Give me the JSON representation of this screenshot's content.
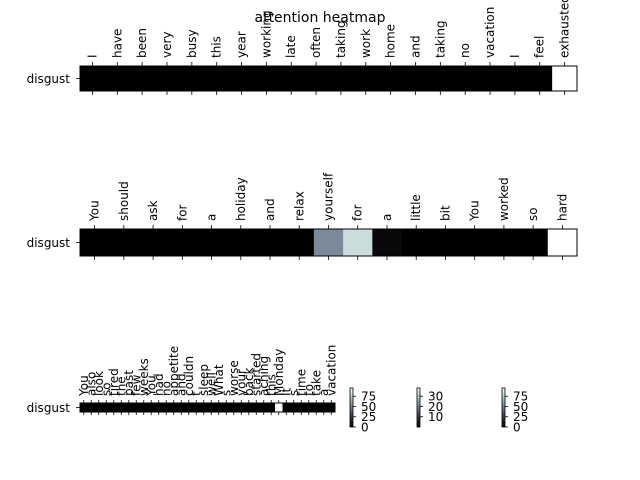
{
  "chart_data": {
    "type": "heatmap",
    "title": "attention heatmap",
    "colormap": "bone",
    "panels": [
      {
        "row_label": "disgust",
        "tokens": [
          "I",
          "have",
          "been",
          "very",
          "busy",
          "this",
          "year",
          "working",
          "late",
          "often",
          "taking",
          "work",
          "home",
          "and",
          "taking",
          "no",
          "vacation",
          "I",
          "feel",
          "exhausted"
        ],
        "values": [
          0,
          0,
          0,
          0,
          0,
          0,
          0,
          0,
          0,
          0,
          0,
          0,
          0,
          0,
          0,
          0,
          0,
          0,
          0,
          100
        ]
      },
      {
        "row_label": "disgust",
        "tokens": [
          "You",
          "should",
          "ask",
          "for",
          "a",
          "holiday",
          "and",
          "relax",
          "yourself",
          "for",
          "a",
          "little",
          "bit",
          "You",
          "worked",
          "so",
          "hard"
        ],
        "values": [
          0,
          0,
          0,
          0,
          0,
          0,
          0,
          0,
          55,
          85,
          4,
          0,
          0,
          0,
          0,
          0,
          100
        ]
      },
      {
        "row_label": "disgust",
        "tokens": [
          "You",
          "also",
          "look",
          "so",
          "tired",
          "the",
          "past",
          "few",
          "weeks",
          "You",
          "had",
          "no",
          "appetite",
          "and",
          "couldn",
          "t",
          "sleep",
          "well",
          "What",
          "s",
          "worse",
          "your",
          "back",
          "started",
          "aching",
          "this",
          "Monday",
          "It",
          "s",
          "time",
          "to",
          "take",
          "a",
          "vacation"
        ],
        "values": [
          0,
          0,
          0,
          0,
          0,
          0,
          0,
          0,
          0,
          0,
          0,
          0,
          0,
          0,
          0,
          0,
          0,
          0,
          0,
          0,
          0,
          0,
          0,
          0,
          0,
          0,
          100,
          0,
          0,
          0,
          0,
          0,
          0,
          0
        ]
      }
    ],
    "colorbars": [
      {
        "ticks": [
          0,
          25,
          50,
          75
        ],
        "range": [
          0,
          95
        ]
      },
      {
        "ticks": [
          10,
          20,
          30
        ],
        "range": [
          0,
          38
        ]
      },
      {
        "ticks": [
          0,
          25,
          50,
          75
        ],
        "range": [
          0,
          95
        ]
      }
    ]
  }
}
